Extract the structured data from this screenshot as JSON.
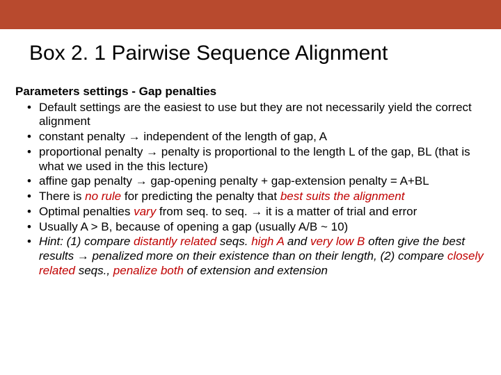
{
  "colors": {
    "top_bar": "#b84a2e",
    "background": "#ffffff",
    "text": "#000000",
    "emphasis_red": "#c00000"
  },
  "typography": {
    "title_fontsize": 30,
    "body_fontsize": 17,
    "font_family": "Arial"
  },
  "title": "Box 2. 1  Pairwise Sequence Alignment",
  "heading": "Parameters settings - Gap penalties",
  "arrow": "→",
  "bullets": [
    {
      "pre": "Default settings are the easiest to use but they are not necessarily yield the correct alignment"
    },
    {
      "pre": "constant penalty ",
      "post": " independent of the length of gap, A"
    },
    {
      "pre": "proportional penalty ",
      "post": " penalty is proportional to the length L of the gap, BL (that is what we used in the this lecture)"
    },
    {
      "pre": "affine gap penalty ",
      "post": " gap-opening penalty + gap-extension penalty = A+BL"
    },
    {
      "t1": "There is ",
      "em1": "no rule",
      "t2": " for predicting the penalty that ",
      "em2": "best suits the alignment"
    },
    {
      "t1": "Optimal penalties ",
      "em1": "vary",
      "t2": " from seq. to seq. ",
      "post": " it is a matter of trial and error"
    },
    {
      "pre": "Usually A > B, because of opening a gap (usually A/B ~ 10)"
    },
    {
      "h1": "Hint: (1) compare ",
      "em1": "distantly related",
      "h2": " seqs. ",
      "em2": "high A",
      "h3": " and ",
      "em3": "very low B",
      "h4": " often give the best results ",
      "post": " penalized more on their existence than on their length, (2) compare ",
      "em4": "closely related",
      "h5": " seqs., ",
      "em5": "penalize both",
      "h6": " of extension and extension"
    }
  ]
}
